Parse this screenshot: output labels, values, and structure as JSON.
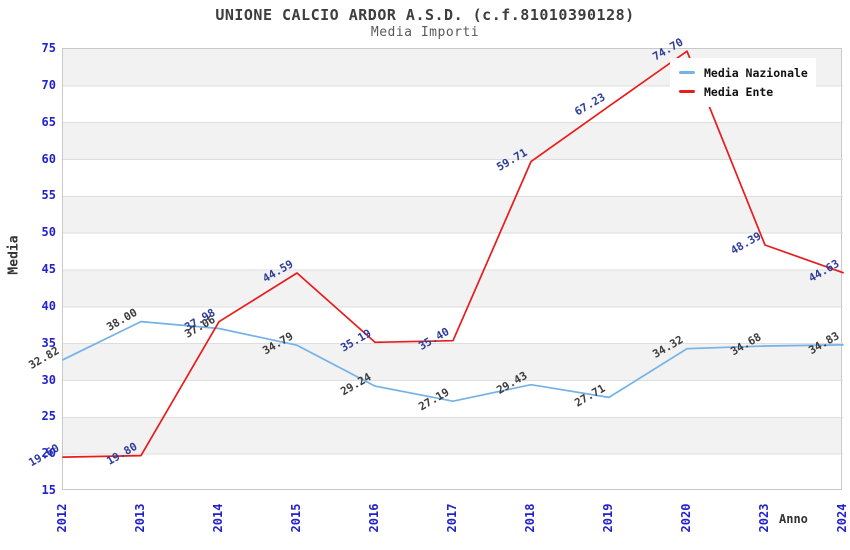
{
  "header": {
    "title": "UNIONE CALCIO ARDOR A.S.D. (c.f.81010390128)",
    "subtitle": "Media Importi"
  },
  "legend": {
    "items": [
      {
        "label": "Media Nazionale",
        "color": "#74b2e8"
      },
      {
        "label": "Media Ente",
        "color": "#e81c1c"
      }
    ]
  },
  "axes": {
    "y_label": "Media",
    "x_label": "Anno",
    "y_ticks": [
      75,
      70,
      65,
      60,
      55,
      50,
      45,
      40,
      35,
      30,
      25,
      20,
      15
    ],
    "x_ticks": [
      "2012",
      "2013",
      "2014",
      "2015",
      "2016",
      "2017",
      "2018",
      "2019",
      "2020",
      "2023",
      "2024"
    ]
  },
  "chart_data": {
    "type": "line",
    "title": "UNIONE CALCIO ARDOR A.S.D. (c.f.81010390128)",
    "subtitle": "Media Importi",
    "xlabel": "Anno",
    "ylabel": "Media",
    "ylim": [
      15,
      75
    ],
    "grid": true,
    "legend_position": "top-right",
    "plot_background_bands": [
      "#f2f2f2",
      "#ffffff"
    ],
    "categories": [
      "2012",
      "2013",
      "2014",
      "2015",
      "2016",
      "2017",
      "2018",
      "2019",
      "2020",
      "2023",
      "2024"
    ],
    "series": [
      {
        "name": "Media Nazionale",
        "color": "#74b2e8",
        "label_color": "#3d3d3d",
        "values": [
          32.82,
          38.0,
          37.06,
          34.79,
          29.24,
          27.19,
          29.43,
          27.71,
          34.32,
          34.68,
          34.83
        ]
      },
      {
        "name": "Media Ente",
        "color": "#e81c1c",
        "label_color": "#2e3d9b",
        "values": [
          19.6,
          19.8,
          37.98,
          44.59,
          35.19,
          35.4,
          59.71,
          67.23,
          74.7,
          48.39,
          44.63
        ]
      }
    ]
  },
  "colors": {
    "tick_text": "#2222cc",
    "gridline": "#dedede",
    "plot_border": "#c9c9c9"
  }
}
